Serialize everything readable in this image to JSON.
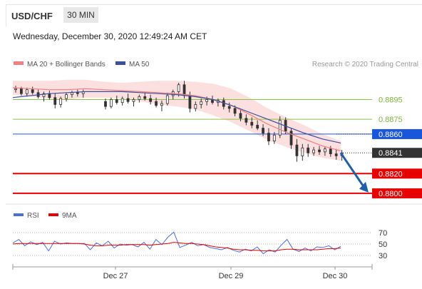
{
  "header": {
    "pair": "USD/CHF",
    "timeframe": "30 MIN"
  },
  "datetime": "Wednesday, December 30, 2020 12:49:24 AM CET",
  "legend": {
    "ma_bb": "MA 20 + Bollinger Bands",
    "ma50": "MA 50",
    "credit": "Research © 2020 Trading Central",
    "rsi": "RSI",
    "ma9": "9MA"
  },
  "colors": {
    "ma_bb": "#f08080",
    "bands_fill": "#fbd9d9",
    "ma50": "#3b4ea0",
    "green_level": "#8bc34a",
    "blue_level": "#1a56db",
    "red_level": "#e60000",
    "arrow": "#1f5fa8",
    "candle": "#333333",
    "rsi": "#4a6fd8",
    "ma9": "#e60000",
    "price_tag": "#333333"
  },
  "chart_data": [
    {
      "type": "candlestick",
      "title": "USD/CHF 30 MIN",
      "x_ticks": [
        "Dec 27",
        "Dec 29",
        "Dec 30"
      ],
      "ylim": [
        0.8792,
        0.8925
      ],
      "levels": [
        {
          "value": 0.8895,
          "label": "0.8895",
          "style": "green"
        },
        {
          "value": 0.8875,
          "label": "0.8875",
          "style": "green"
        },
        {
          "value": 0.886,
          "label": "0.8860",
          "style": "blue"
        },
        {
          "value": 0.882,
          "label": "0.8820",
          "style": "red"
        },
        {
          "value": 0.88,
          "label": "0.8800",
          "style": "red"
        }
      ],
      "last_price": {
        "value": 0.8841,
        "label": "0.8841"
      },
      "projection": {
        "from": 0.8841,
        "to": 0.8803
      },
      "series": [
        {
          "name": "MA 20 + Bollinger Bands",
          "values": [
            0.8907,
            0.8906,
            0.8905,
            0.8905,
            0.8906,
            0.8905,
            0.8904,
            0.8903,
            0.8902,
            0.8901,
            0.8899,
            0.8895,
            0.8889,
            0.888,
            0.887,
            0.8862,
            0.8855,
            0.8848,
            0.8843
          ]
        },
        {
          "name": "MA 50",
          "values": [
            0.8897,
            0.8899,
            0.8901,
            0.8902,
            0.8903,
            0.8903,
            0.8903,
            0.8902,
            0.8901,
            0.89,
            0.8898,
            0.8895,
            0.8889,
            0.8882,
            0.8875,
            0.8868,
            0.8861,
            0.8855,
            0.8851
          ]
        }
      ],
      "candles": [
        {
          "o": 0.8905,
          "h": 0.8909,
          "l": 0.8902,
          "c": 0.8906
        },
        {
          "o": 0.8906,
          "h": 0.8908,
          "l": 0.8899,
          "c": 0.8901
        },
        {
          "o": 0.8901,
          "h": 0.8907,
          "l": 0.8898,
          "c": 0.8905
        },
        {
          "o": 0.8905,
          "h": 0.8908,
          "l": 0.89,
          "c": 0.8902
        },
        {
          "o": 0.8902,
          "h": 0.8905,
          "l": 0.8896,
          "c": 0.8898
        },
        {
          "o": 0.8898,
          "h": 0.8903,
          "l": 0.8893,
          "c": 0.8901
        },
        {
          "o": 0.8901,
          "h": 0.8904,
          "l": 0.8895,
          "c": 0.8897
        },
        {
          "o": 0.8897,
          "h": 0.8901,
          "l": 0.8886,
          "c": 0.889
        },
        {
          "o": 0.889,
          "h": 0.8898,
          "l": 0.8887,
          "c": 0.8896
        },
        {
          "o": 0.8896,
          "h": 0.8902,
          "l": 0.8893,
          "c": 0.89
        },
        {
          "o": 0.89,
          "h": 0.8904,
          "l": 0.8897,
          "c": 0.8902
        },
        {
          "o": 0.8902,
          "h": 0.8905,
          "l": 0.8898,
          "c": 0.8901
        },
        {
          "o": 0.8901,
          "h": 0.8905,
          "l": 0.8897,
          "c": 0.8903
        },
        {
          "o": 0.8893,
          "h": 0.8896,
          "l": 0.8885,
          "c": 0.8888
        },
        {
          "o": 0.8888,
          "h": 0.8897,
          "l": 0.8886,
          "c": 0.8895
        },
        {
          "o": 0.8895,
          "h": 0.8899,
          "l": 0.889,
          "c": 0.8892
        },
        {
          "o": 0.8892,
          "h": 0.8898,
          "l": 0.8889,
          "c": 0.8896
        },
        {
          "o": 0.8896,
          "h": 0.8901,
          "l": 0.8891,
          "c": 0.8893
        },
        {
          "o": 0.8893,
          "h": 0.8897,
          "l": 0.8888,
          "c": 0.8895
        },
        {
          "o": 0.8895,
          "h": 0.89,
          "l": 0.8892,
          "c": 0.8898
        },
        {
          "o": 0.8898,
          "h": 0.8902,
          "l": 0.8894,
          "c": 0.8896
        },
        {
          "o": 0.8896,
          "h": 0.89,
          "l": 0.889,
          "c": 0.8893
        },
        {
          "o": 0.8893,
          "h": 0.8897,
          "l": 0.8887,
          "c": 0.8889
        },
        {
          "o": 0.8889,
          "h": 0.8894,
          "l": 0.8883,
          "c": 0.8891
        },
        {
          "o": 0.8891,
          "h": 0.8902,
          "l": 0.8889,
          "c": 0.8899
        },
        {
          "o": 0.8899,
          "h": 0.8905,
          "l": 0.8895,
          "c": 0.8903
        },
        {
          "o": 0.8903,
          "h": 0.8912,
          "l": 0.8898,
          "c": 0.891
        },
        {
          "o": 0.891,
          "h": 0.8914,
          "l": 0.8896,
          "c": 0.8899
        },
        {
          "o": 0.8899,
          "h": 0.8903,
          "l": 0.8882,
          "c": 0.8886
        },
        {
          "o": 0.8886,
          "h": 0.8893,
          "l": 0.8883,
          "c": 0.889
        },
        {
          "o": 0.889,
          "h": 0.8896,
          "l": 0.8886,
          "c": 0.8893
        },
        {
          "o": 0.8893,
          "h": 0.8898,
          "l": 0.8889,
          "c": 0.8895
        },
        {
          "o": 0.8895,
          "h": 0.8899,
          "l": 0.889,
          "c": 0.8892
        },
        {
          "o": 0.8892,
          "h": 0.8896,
          "l": 0.8888,
          "c": 0.8894
        },
        {
          "o": 0.8894,
          "h": 0.8897,
          "l": 0.8885,
          "c": 0.8888
        },
        {
          "o": 0.8888,
          "h": 0.8892,
          "l": 0.8882,
          "c": 0.8886
        },
        {
          "o": 0.8886,
          "h": 0.8889,
          "l": 0.8878,
          "c": 0.8881
        },
        {
          "o": 0.8881,
          "h": 0.8885,
          "l": 0.8873,
          "c": 0.8876
        },
        {
          "o": 0.8876,
          "h": 0.888,
          "l": 0.8869,
          "c": 0.8872
        },
        {
          "o": 0.8872,
          "h": 0.8877,
          "l": 0.8866,
          "c": 0.8869
        },
        {
          "o": 0.8869,
          "h": 0.8874,
          "l": 0.8864,
          "c": 0.8866
        },
        {
          "o": 0.8866,
          "h": 0.887,
          "l": 0.8858,
          "c": 0.8861
        },
        {
          "o": 0.8861,
          "h": 0.8866,
          "l": 0.8849,
          "c": 0.8853
        },
        {
          "o": 0.8853,
          "h": 0.8862,
          "l": 0.885,
          "c": 0.8859
        },
        {
          "o": 0.8859,
          "h": 0.8878,
          "l": 0.8856,
          "c": 0.8874
        },
        {
          "o": 0.8874,
          "h": 0.8877,
          "l": 0.886,
          "c": 0.8863
        },
        {
          "o": 0.8863,
          "h": 0.8866,
          "l": 0.8845,
          "c": 0.8849
        },
        {
          "o": 0.8849,
          "h": 0.8855,
          "l": 0.8832,
          "c": 0.8838
        },
        {
          "o": 0.8838,
          "h": 0.885,
          "l": 0.8833,
          "c": 0.8846
        },
        {
          "o": 0.8846,
          "h": 0.885,
          "l": 0.8837,
          "c": 0.8841
        },
        {
          "o": 0.8841,
          "h": 0.8847,
          "l": 0.8838,
          "c": 0.8844
        },
        {
          "o": 0.8844,
          "h": 0.8848,
          "l": 0.8839,
          "c": 0.8842
        },
        {
          "o": 0.8842,
          "h": 0.8847,
          "l": 0.8838,
          "c": 0.8845
        },
        {
          "o": 0.8845,
          "h": 0.8848,
          "l": 0.8837,
          "c": 0.884
        },
        {
          "o": 0.884,
          "h": 0.8845,
          "l": 0.8834,
          "c": 0.8838
        },
        {
          "o": 0.8838,
          "h": 0.8844,
          "l": 0.8833,
          "c": 0.8841
        }
      ]
    },
    {
      "type": "line",
      "title": "RSI",
      "y_ticks": [
        70,
        50,
        30
      ],
      "ylim": [
        20,
        80
      ],
      "series": [
        {
          "name": "RSI",
          "values": [
            52,
            58,
            47,
            54,
            49,
            53,
            38,
            55,
            50,
            52,
            51,
            51,
            51,
            40,
            52,
            47,
            55,
            43,
            50,
            48,
            49,
            45,
            53,
            41,
            58,
            49,
            62,
            71,
            44,
            48,
            53,
            47,
            49,
            44,
            42,
            40,
            44,
            39,
            36,
            41,
            38,
            45,
            33,
            40,
            36,
            48,
            58,
            41,
            37,
            43,
            38,
            45,
            44,
            47,
            40,
            46
          ]
        },
        {
          "name": "9MA",
          "values": [
            50,
            51,
            51,
            51,
            51,
            51,
            51,
            51,
            51,
            51,
            51,
            51,
            50,
            48,
            47,
            47,
            48,
            48,
            48,
            49,
            49,
            49,
            49,
            48,
            49,
            50,
            51,
            53,
            52,
            51,
            51,
            50,
            49,
            47,
            45,
            44,
            43,
            41,
            40,
            40,
            39,
            39,
            38,
            38,
            38,
            40,
            41,
            41,
            40,
            40,
            40,
            40,
            41,
            42,
            42,
            43
          ]
        }
      ]
    }
  ]
}
